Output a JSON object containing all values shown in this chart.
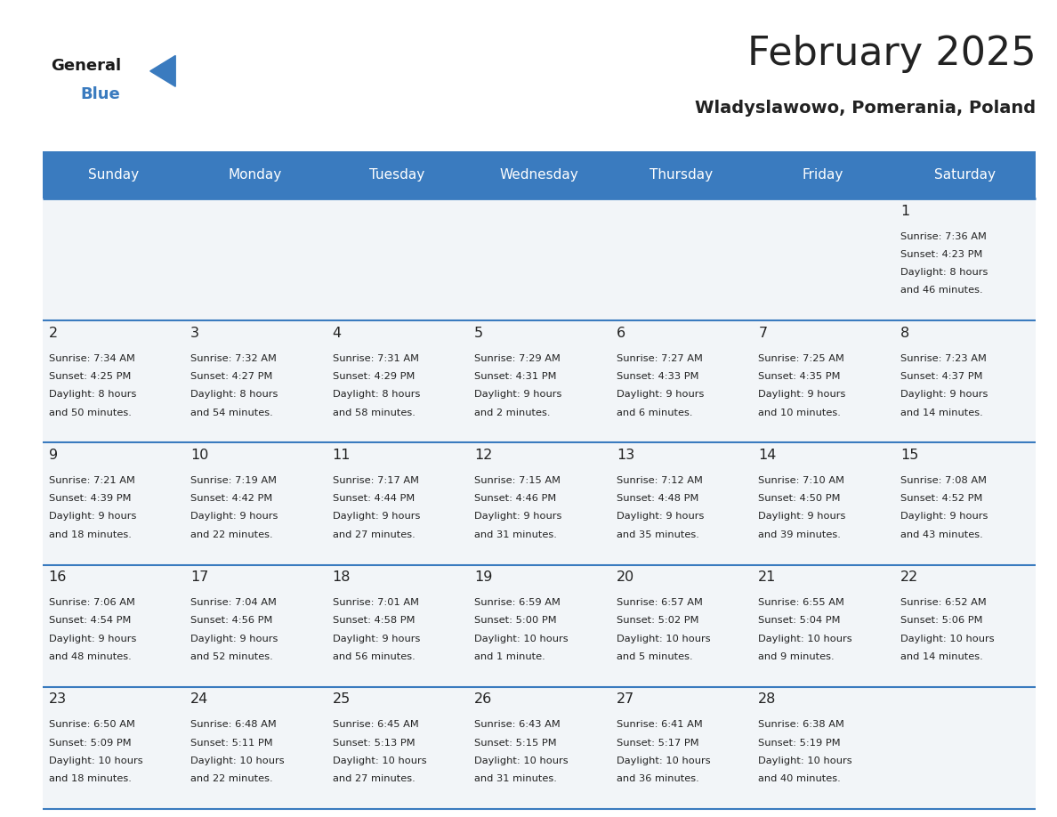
{
  "title": "February 2025",
  "subtitle": "Wladyslawowo, Pomerania, Poland",
  "header_color": "#3a7bbf",
  "header_text_color": "#ffffff",
  "day_names": [
    "Sunday",
    "Monday",
    "Tuesday",
    "Wednesday",
    "Thursday",
    "Friday",
    "Saturday"
  ],
  "days": [
    {
      "day": 1,
      "col": 6,
      "row": 0,
      "sunrise": "7:36 AM",
      "sunset": "4:23 PM",
      "daylight": "8 hours and 46 minutes."
    },
    {
      "day": 2,
      "col": 0,
      "row": 1,
      "sunrise": "7:34 AM",
      "sunset": "4:25 PM",
      "daylight": "8 hours and 50 minutes."
    },
    {
      "day": 3,
      "col": 1,
      "row": 1,
      "sunrise": "7:32 AM",
      "sunset": "4:27 PM",
      "daylight": "8 hours and 54 minutes."
    },
    {
      "day": 4,
      "col": 2,
      "row": 1,
      "sunrise": "7:31 AM",
      "sunset": "4:29 PM",
      "daylight": "8 hours and 58 minutes."
    },
    {
      "day": 5,
      "col": 3,
      "row": 1,
      "sunrise": "7:29 AM",
      "sunset": "4:31 PM",
      "daylight": "9 hours and 2 minutes."
    },
    {
      "day": 6,
      "col": 4,
      "row": 1,
      "sunrise": "7:27 AM",
      "sunset": "4:33 PM",
      "daylight": "9 hours and 6 minutes."
    },
    {
      "day": 7,
      "col": 5,
      "row": 1,
      "sunrise": "7:25 AM",
      "sunset": "4:35 PM",
      "daylight": "9 hours and 10 minutes."
    },
    {
      "day": 8,
      "col": 6,
      "row": 1,
      "sunrise": "7:23 AM",
      "sunset": "4:37 PM",
      "daylight": "9 hours and 14 minutes."
    },
    {
      "day": 9,
      "col": 0,
      "row": 2,
      "sunrise": "7:21 AM",
      "sunset": "4:39 PM",
      "daylight": "9 hours and 18 minutes."
    },
    {
      "day": 10,
      "col": 1,
      "row": 2,
      "sunrise": "7:19 AM",
      "sunset": "4:42 PM",
      "daylight": "9 hours and 22 minutes."
    },
    {
      "day": 11,
      "col": 2,
      "row": 2,
      "sunrise": "7:17 AM",
      "sunset": "4:44 PM",
      "daylight": "9 hours and 27 minutes."
    },
    {
      "day": 12,
      "col": 3,
      "row": 2,
      "sunrise": "7:15 AM",
      "sunset": "4:46 PM",
      "daylight": "9 hours and 31 minutes."
    },
    {
      "day": 13,
      "col": 4,
      "row": 2,
      "sunrise": "7:12 AM",
      "sunset": "4:48 PM",
      "daylight": "9 hours and 35 minutes."
    },
    {
      "day": 14,
      "col": 5,
      "row": 2,
      "sunrise": "7:10 AM",
      "sunset": "4:50 PM",
      "daylight": "9 hours and 39 minutes."
    },
    {
      "day": 15,
      "col": 6,
      "row": 2,
      "sunrise": "7:08 AM",
      "sunset": "4:52 PM",
      "daylight": "9 hours and 43 minutes."
    },
    {
      "day": 16,
      "col": 0,
      "row": 3,
      "sunrise": "7:06 AM",
      "sunset": "4:54 PM",
      "daylight": "9 hours and 48 minutes."
    },
    {
      "day": 17,
      "col": 1,
      "row": 3,
      "sunrise": "7:04 AM",
      "sunset": "4:56 PM",
      "daylight": "9 hours and 52 minutes."
    },
    {
      "day": 18,
      "col": 2,
      "row": 3,
      "sunrise": "7:01 AM",
      "sunset": "4:58 PM",
      "daylight": "9 hours and 56 minutes."
    },
    {
      "day": 19,
      "col": 3,
      "row": 3,
      "sunrise": "6:59 AM",
      "sunset": "5:00 PM",
      "daylight": "10 hours and 1 minute."
    },
    {
      "day": 20,
      "col": 4,
      "row": 3,
      "sunrise": "6:57 AM",
      "sunset": "5:02 PM",
      "daylight": "10 hours and 5 minutes."
    },
    {
      "day": 21,
      "col": 5,
      "row": 3,
      "sunrise": "6:55 AM",
      "sunset": "5:04 PM",
      "daylight": "10 hours and 9 minutes."
    },
    {
      "day": 22,
      "col": 6,
      "row": 3,
      "sunrise": "6:52 AM",
      "sunset": "5:06 PM",
      "daylight": "10 hours and 14 minutes."
    },
    {
      "day": 23,
      "col": 0,
      "row": 4,
      "sunrise": "6:50 AM",
      "sunset": "5:09 PM",
      "daylight": "10 hours and 18 minutes."
    },
    {
      "day": 24,
      "col": 1,
      "row": 4,
      "sunrise": "6:48 AM",
      "sunset": "5:11 PM",
      "daylight": "10 hours and 22 minutes."
    },
    {
      "day": 25,
      "col": 2,
      "row": 4,
      "sunrise": "6:45 AM",
      "sunset": "5:13 PM",
      "daylight": "10 hours and 27 minutes."
    },
    {
      "day": 26,
      "col": 3,
      "row": 4,
      "sunrise": "6:43 AM",
      "sunset": "5:15 PM",
      "daylight": "10 hours and 31 minutes."
    },
    {
      "day": 27,
      "col": 4,
      "row": 4,
      "sunrise": "6:41 AM",
      "sunset": "5:17 PM",
      "daylight": "10 hours and 36 minutes."
    },
    {
      "day": 28,
      "col": 5,
      "row": 4,
      "sunrise": "6:38 AM",
      "sunset": "5:19 PM",
      "daylight": "10 hours and 40 minutes."
    }
  ],
  "bg_color": "#ffffff",
  "cell_bg": "#f2f5f8",
  "text_color": "#222222",
  "line_color": "#3a7bbf",
  "logo_general_color": "#1a1a1a",
  "logo_blue_color": "#3a7bbf"
}
